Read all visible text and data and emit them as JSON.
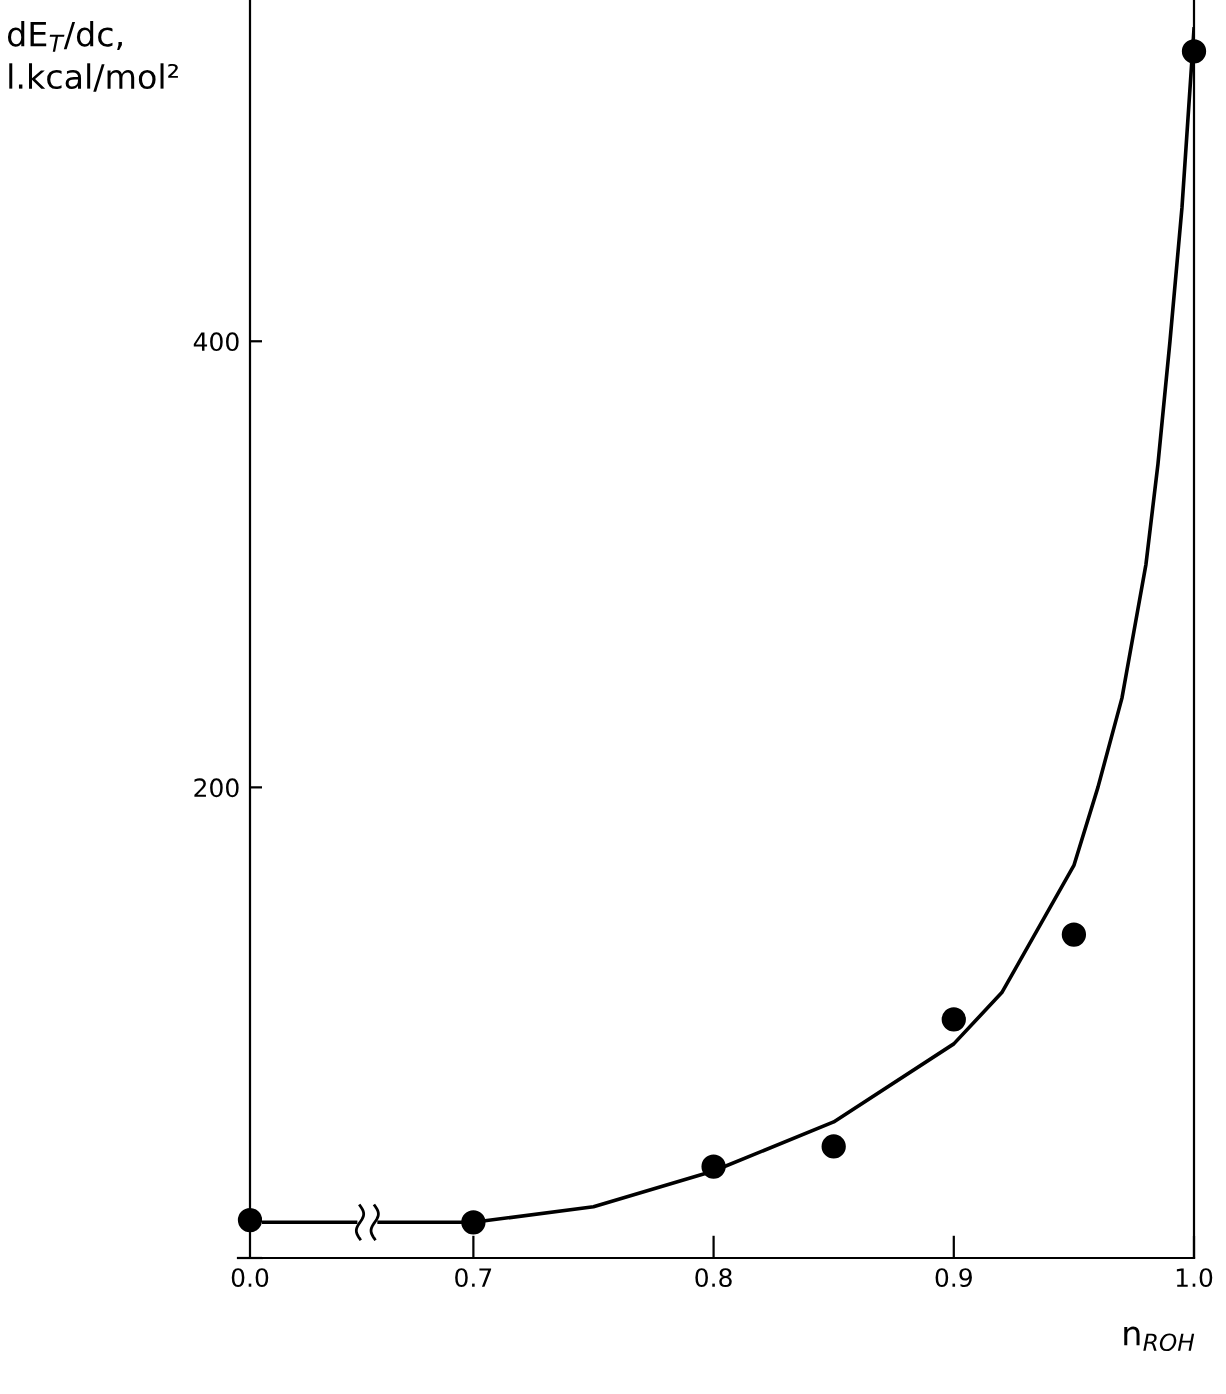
{
  "chart_data": [
    {
      "type": "scatter",
      "ylabel": "dE$_{T}$/dc,\nl.kcal/mol²",
      "categories": [
        "0.0"
      ],
      "ylim": [
        -11,
        553
      ],
      "yticks": [
        200,
        400
      ],
      "tick_labels": true,
      "marker": "circle",
      "grid": false,
      "legend": false,
      "series": [
        {
          "color": "#000000",
          "values": [
            6
          ]
        }
      ]
    },
    {
      "type": "scatter",
      "xlabel": "n$_{ROH}$",
      "xlim": [
        0.612,
        1.0
      ],
      "xticks": [
        {
          "value": 0.7,
          "label": "0.7"
        },
        {
          "value": 0.8,
          "label": "0.8"
        },
        {
          "value": 0.9,
          "label": "0.9"
        },
        {
          "value": 1.0,
          "label": "1.0"
        }
      ],
      "ylim": [
        -11,
        553
      ],
      "tick_labels": "x",
      "marker": "circle",
      "grid": false,
      "legend": false,
      "series": [
        {
          "color": "#000000",
          "x": [
            0.7,
            0.8,
            0.85,
            0.9,
            0.95,
            1.0
          ],
          "values": [
            5,
            30,
            39,
            96,
            134,
            530
          ]
        },
        {
          "type": "line",
          "color": "#000000",
          "marker": "none",
          "x": [
            0.612,
            0.7,
            0.75,
            0.8,
            0.85,
            0.9,
            0.92,
            0.95,
            0.96,
            0.97,
            0.975,
            0.98,
            0.985,
            0.99,
            0.995,
            1.0
          ],
          "values": [
            5,
            5,
            12,
            28,
            50,
            85,
            108,
            165,
            200,
            240,
            270,
            300,
            345,
            400,
            460,
            540
          ]
        }
      ]
    }
  ]
}
